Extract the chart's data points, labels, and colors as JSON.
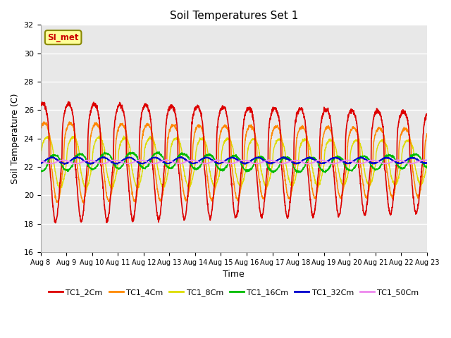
{
  "title": "Soil Temperatures Set 1",
  "xlabel": "Time",
  "ylabel": "Soil Temperature (C)",
  "ylim": [
    16,
    32
  ],
  "yticks": [
    16,
    18,
    20,
    22,
    24,
    26,
    28,
    30,
    32
  ],
  "xtick_labels": [
    "Aug 8",
    "Aug 9",
    "Aug 10",
    "Aug 11",
    "Aug 12",
    "Aug 13",
    "Aug 14",
    "Aug 15",
    "Aug 16",
    "Aug 17",
    "Aug 18",
    "Aug 19",
    "Aug 20",
    "Aug 21",
    "Aug 22",
    "Aug 23"
  ],
  "annotation_text": "SI_met",
  "annotation_bg": "#ffff99",
  "annotation_border": "#888800",
  "annotation_color": "#cc0000",
  "series_colors": [
    "#dd0000",
    "#ff8800",
    "#dddd00",
    "#00bb00",
    "#0000cc",
    "#ee88ee"
  ],
  "series_labels": [
    "TC1_2Cm",
    "TC1_4Cm",
    "TC1_8Cm",
    "TC1_16Cm",
    "TC1_32Cm",
    "TC1_50Cm"
  ],
  "background_color": "#e8e8e8",
  "n_days": 15,
  "points_per_day": 144,
  "mean_temp": 22.3,
  "amps": [
    4.2,
    2.8,
    1.8,
    0.55,
    0.22,
    0.12
  ],
  "lags_days": [
    0.0,
    0.07,
    0.18,
    0.45,
    0.85,
    1.3
  ],
  "peak_sharpness": [
    3.5,
    3.0,
    2.5,
    2.0,
    1.5,
    1.2
  ]
}
